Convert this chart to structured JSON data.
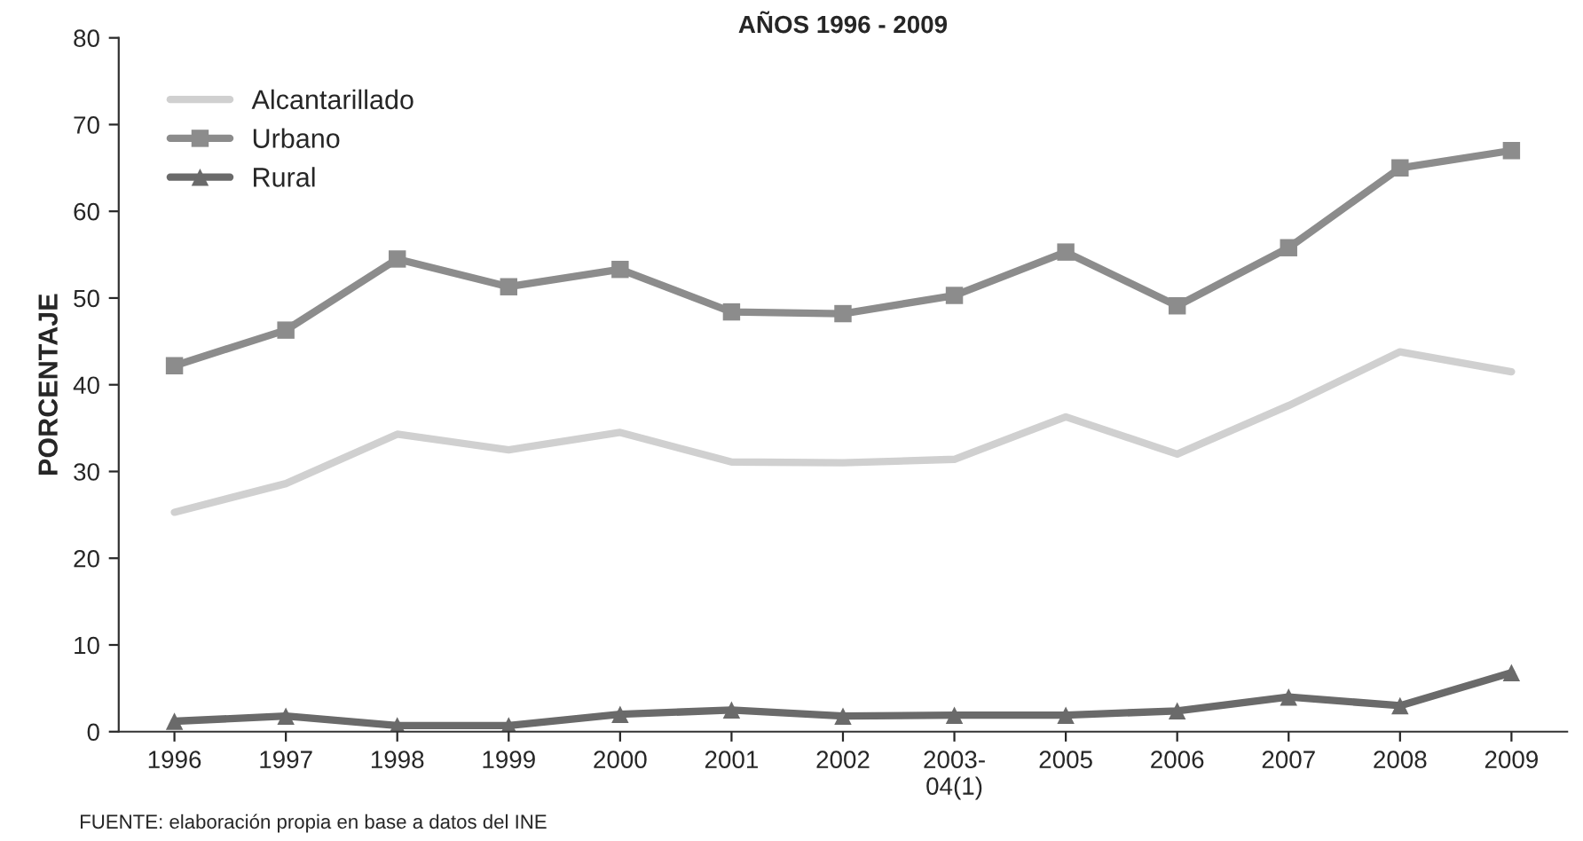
{
  "chart_data": {
    "type": "line",
    "title": "AÑOS 1996 - 2009",
    "ylabel": "PORCENTAJE",
    "categories": [
      "1996",
      "1997",
      "1998",
      "1999",
      "2000",
      "2001",
      "2002",
      "2003-\n04(1)",
      "2005",
      "2006",
      "2007",
      "2008",
      "2009"
    ],
    "series": [
      {
        "name": "Alcantarillado",
        "color": "#d0d0d0",
        "marker": "none",
        "values": [
          25.3,
          28.6,
          34.3,
          32.5,
          34.5,
          31.1,
          31.0,
          31.4,
          36.3,
          32.0,
          37.6,
          43.8,
          41.5
        ]
      },
      {
        "name": "Urbano",
        "color": "#8c8c8c",
        "marker": "square",
        "values": [
          42.2,
          46.3,
          54.5,
          51.3,
          53.3,
          48.4,
          48.2,
          50.3,
          55.3,
          49.1,
          55.8,
          65.0,
          67.0
        ]
      },
      {
        "name": "Rural",
        "color": "#6a6a6a",
        "marker": "triangle",
        "values": [
          1.2,
          1.8,
          0.7,
          0.7,
          2.0,
          2.5,
          1.8,
          1.9,
          1.9,
          2.4,
          4.0,
          3.0,
          6.8
        ]
      }
    ],
    "ylim": [
      0,
      80
    ],
    "yticks": [
      0,
      10,
      20,
      30,
      40,
      50,
      60,
      70,
      80
    ],
    "grid": false,
    "legend": "top left",
    "annotations": [
      "FUENTE: elaboración propia en base a datos del INE"
    ]
  }
}
